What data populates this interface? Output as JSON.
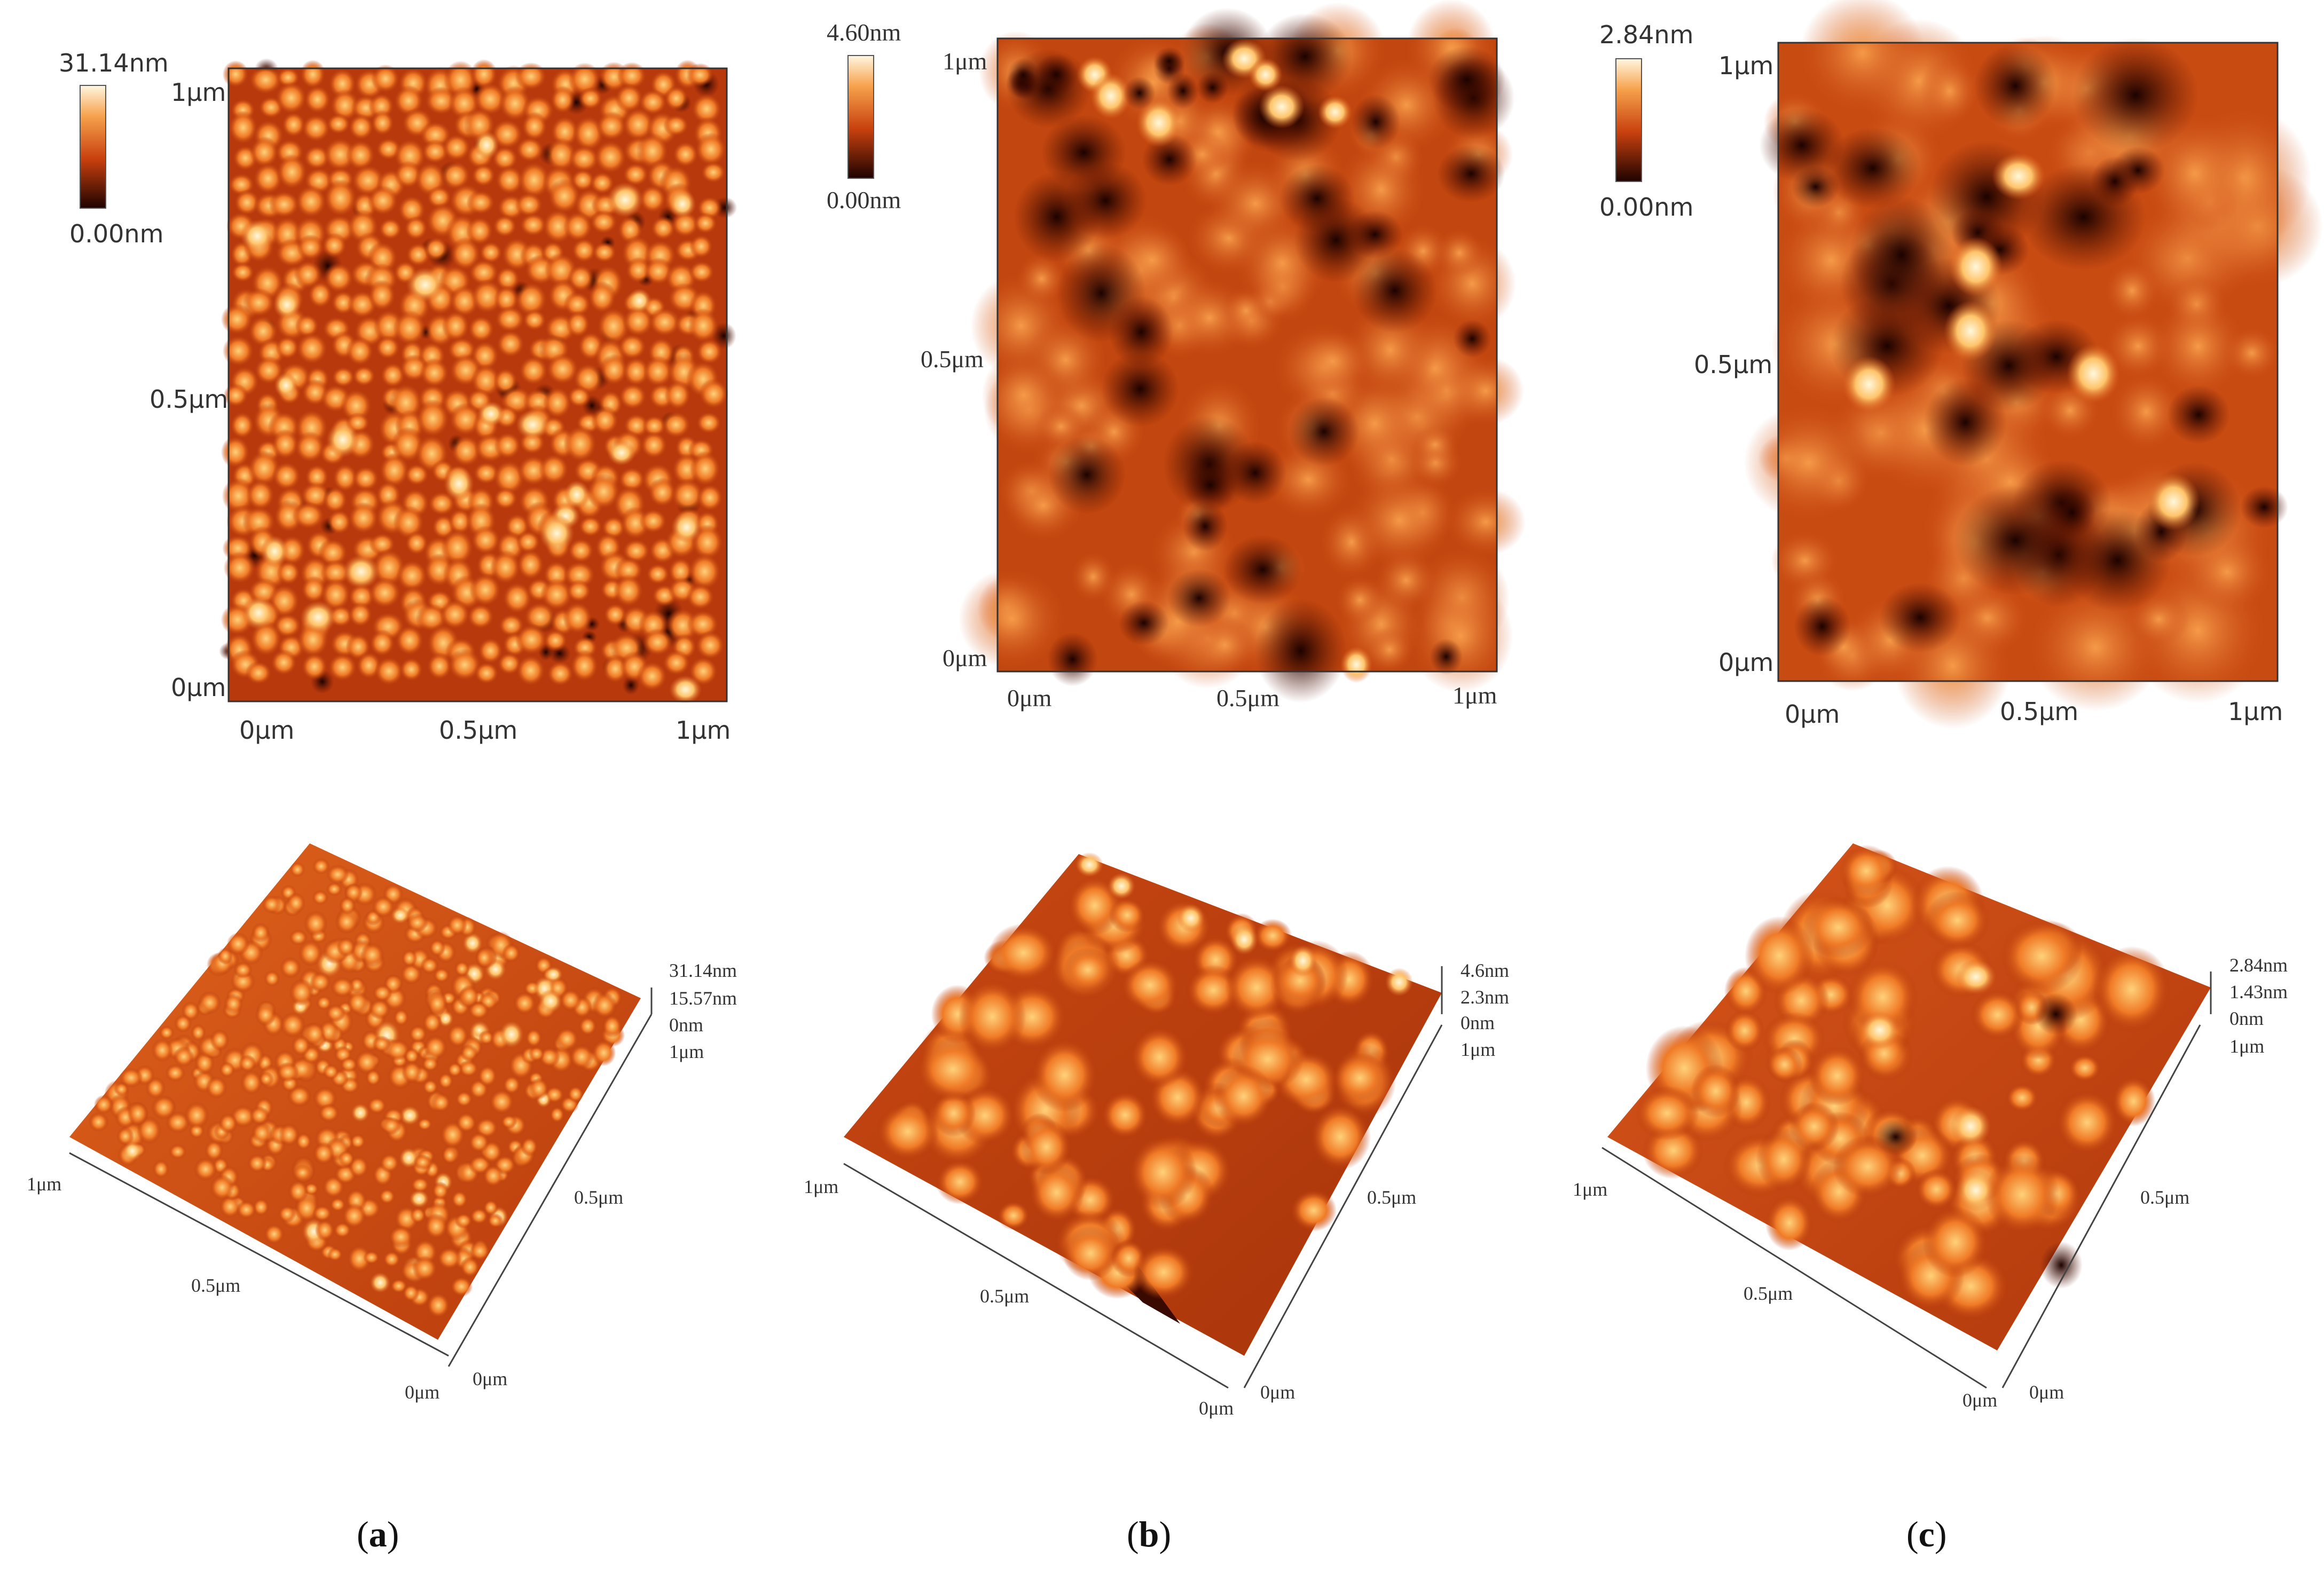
{
  "colors": {
    "dark": "#2a0400",
    "low": "#8a1e03",
    "mid": "#cf4a12",
    "high": "#f08a32",
    "peak": "#fff6d8"
  },
  "panels": [
    {
      "caption_open": "(",
      "caption_letter": "a",
      "caption_close": ")",
      "scale_max": "31.14nm",
      "scale_min": "0.00nm",
      "y_ticks": [
        "1μm",
        "0.5μm",
        "0μm"
      ],
      "x_ticks": [
        "0μm",
        "0.5μm",
        "1μm"
      ],
      "z_labels": [
        "31.14nm",
        "15.57nm",
        "0nm",
        "1μm"
      ],
      "axis_3d": {
        "left_end": "1μm",
        "left_mid": "0.5μm",
        "corner_left": "0μm",
        "corner_right": "0μm",
        "right_mid": "0.5μm"
      }
    },
    {
      "caption_open": "(",
      "caption_letter": "b",
      "caption_close": ")",
      "scale_max": "4.60nm",
      "scale_min": "0.00nm",
      "y_ticks": [
        "1μm",
        "0.5μm",
        "0μm"
      ],
      "x_ticks": [
        "0μm",
        "0.5μm",
        "1μm"
      ],
      "z_labels": [
        "4.6nm",
        "2.3nm",
        "0nm",
        "1μm"
      ],
      "axis_3d": {
        "left_end": "1μm",
        "left_mid": "0.5μm",
        "corner_left": "0μm",
        "corner_right": "0μm",
        "right_mid": "0.5μm"
      }
    },
    {
      "caption_open": "(",
      "caption_letter": "c",
      "caption_close": ")",
      "scale_max": "2.84nm",
      "scale_min": "0.00nm",
      "y_ticks": [
        "1μm",
        "0.5μm",
        "0μm"
      ],
      "x_ticks": [
        "0μm",
        "0.5μm",
        "1μm"
      ],
      "z_labels": [
        "2.84nm",
        "1.43nm",
        "0nm",
        "1μm"
      ],
      "axis_3d": {
        "left_end": "1μm",
        "left_mid": "0.5μm",
        "corner_left": "0μm",
        "corner_right": "0μm",
        "right_mid": "0.5μm"
      }
    }
  ]
}
